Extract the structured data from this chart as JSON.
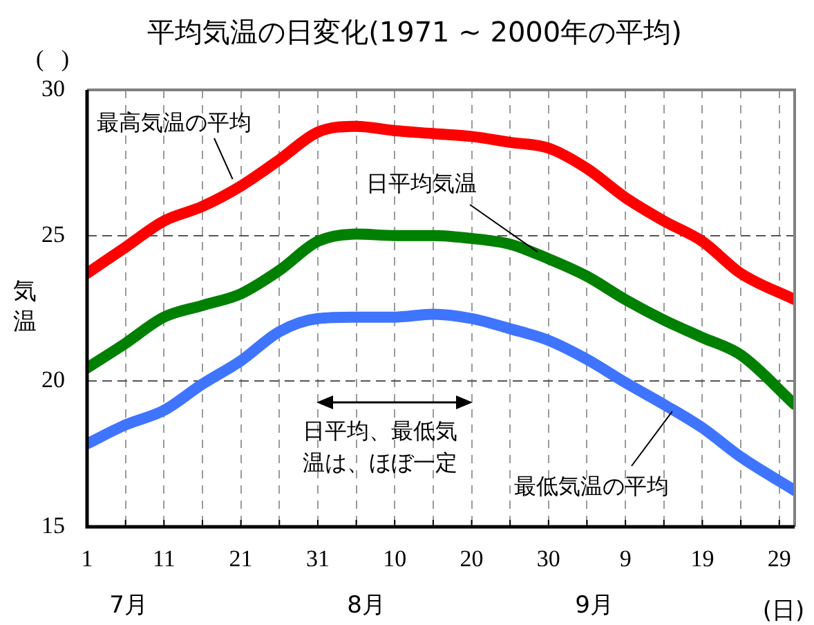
{
  "chart_data": {
    "type": "line",
    "title": "平均気温の日変化(1971 ~ 2000年の平均)",
    "ylabel": "気温",
    "xlabel": "(日)",
    "x": [
      "--07-01",
      "--07-06",
      "--07-11",
      "--07-16",
      "--07-21",
      "--07-26",
      "--07-31",
      "--08-05",
      "--08-10",
      "--08-15",
      "--08-20",
      "--08-25",
      "--08-30",
      "--09-04",
      "--09-09",
      "--09-14",
      "--09-19",
      "--09-24",
      "--10-01"
    ],
    "xlim": [
      "--07-01",
      "--10-01"
    ],
    "xticks": [
      {
        "value": "--07-01",
        "label": "1"
      },
      {
        "value": "--07-06",
        "label": null
      },
      {
        "value": "--07-11",
        "label": "11"
      },
      {
        "value": "--07-16",
        "label": null
      },
      {
        "value": "--07-21",
        "label": "21"
      },
      {
        "value": "--07-26",
        "label": null
      },
      {
        "value": "--07-31",
        "label": "31"
      },
      {
        "value": "--08-05",
        "label": null
      },
      {
        "value": "--08-10",
        "label": "10"
      },
      {
        "value": "--08-15",
        "label": null
      },
      {
        "value": "--08-20",
        "label": "20"
      },
      {
        "value": "--08-25",
        "label": null
      },
      {
        "value": "--08-30",
        "label": "30"
      },
      {
        "value": "--09-04",
        "label": null
      },
      {
        "value": "--09-09",
        "label": "9"
      },
      {
        "value": "--09-14",
        "label": null
      },
      {
        "value": "--09-19",
        "label": "19"
      },
      {
        "value": "--09-24",
        "label": null
      },
      {
        "value": "--09-29",
        "label": "29"
      }
    ],
    "ylim": [
      15,
      30
    ],
    "yticks": [
      15,
      20,
      25,
      30
    ],
    "grid": true,
    "legend": false,
    "marker": "none",
    "line_style": "solid",
    "series": [
      {
        "name": "最高気温の平均",
        "color": "#ff0000",
        "values": [
          23.7,
          24.6,
          25.5,
          26.0,
          26.7,
          27.6,
          28.55,
          28.75,
          28.6,
          28.5,
          28.4,
          28.2,
          28.0,
          27.3,
          26.3,
          25.5,
          24.8,
          23.7,
          22.8
        ]
      },
      {
        "name": "日平均気温",
        "color": "#008000",
        "values": [
          20.45,
          21.3,
          22.2,
          22.6,
          23.0,
          23.8,
          24.8,
          25.05,
          25.0,
          25.0,
          24.9,
          24.7,
          24.2,
          23.6,
          22.8,
          22.1,
          21.5,
          20.9,
          19.2
        ]
      },
      {
        "name": "最低気温の平均",
        "color": "#3f74ff",
        "values": [
          17.85,
          18.5,
          19.0,
          19.9,
          20.7,
          21.7,
          22.15,
          22.2,
          22.2,
          22.3,
          22.15,
          21.8,
          21.4,
          20.75,
          19.95,
          19.2,
          18.4,
          17.4,
          16.25
        ]
      }
    ],
    "annotations": [
      "日平均、最低気温は、ほぼ一定",
      "7月",
      "8月",
      "9月",
      "(   )"
    ]
  }
}
